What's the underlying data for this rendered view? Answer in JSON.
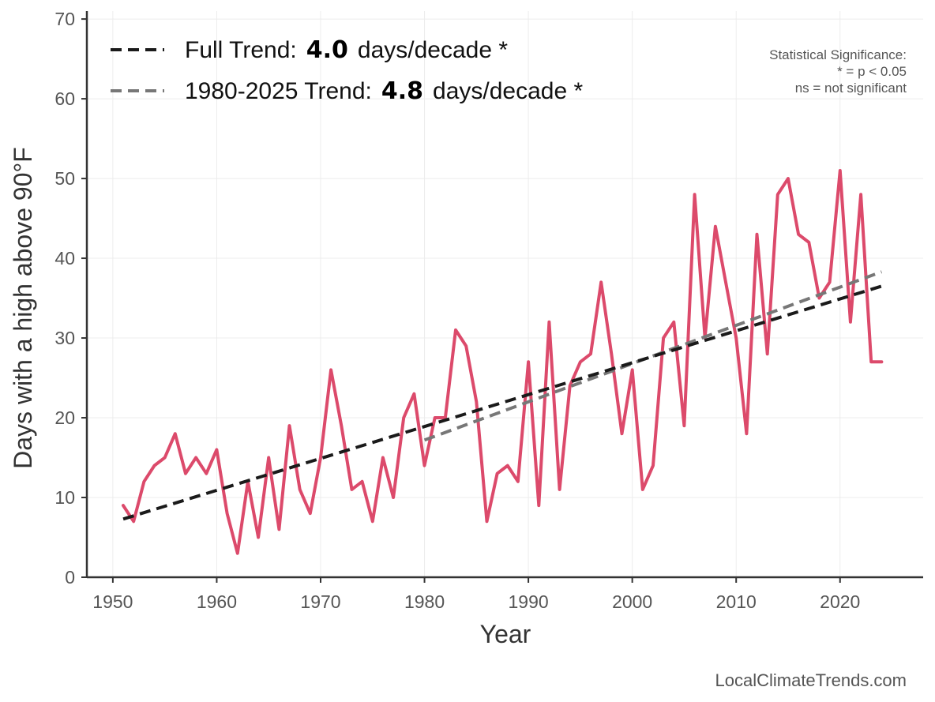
{
  "chart_data": {
    "type": "line",
    "title": "",
    "xlabel": "Year",
    "ylabel": "Days with a high above 90°F",
    "xlim": [
      1947.5,
      2028
    ],
    "ylim": [
      0,
      71
    ],
    "x_ticks": [
      1950,
      1960,
      1970,
      1980,
      1990,
      2000,
      2010,
      2020
    ],
    "y_ticks": [
      0,
      10,
      20,
      30,
      40,
      50,
      60,
      70
    ],
    "grid": true,
    "legend_position": "top-left",
    "series": [
      {
        "kind": "data",
        "color": "#dc4a6b",
        "x": [
          1951,
          1952,
          1953,
          1954,
          1955,
          1956,
          1957,
          1958,
          1959,
          1960,
          1961,
          1962,
          1963,
          1964,
          1965,
          1966,
          1967,
          1968,
          1969,
          1970,
          1971,
          1972,
          1973,
          1974,
          1975,
          1976,
          1977,
          1978,
          1979,
          1980,
          1981,
          1982,
          1983,
          1984,
          1985,
          1986,
          1987,
          1988,
          1989,
          1990,
          1991,
          1992,
          1993,
          1994,
          1995,
          1996,
          1997,
          1998,
          1999,
          2000,
          2001,
          2002,
          2003,
          2004,
          2005,
          2006,
          2007,
          2008,
          2009,
          2010,
          2011,
          2012,
          2013,
          2014,
          2015,
          2016,
          2017,
          2018,
          2019,
          2020,
          2021,
          2022,
          2023,
          2024
        ],
        "values": [
          9,
          7,
          12,
          14,
          15,
          18,
          13,
          15,
          13,
          16,
          8,
          3,
          12,
          5,
          15,
          6,
          19,
          11,
          8,
          15,
          26,
          19,
          11,
          12,
          7,
          15,
          10,
          20,
          23,
          14,
          20,
          20,
          31,
          29,
          22,
          7,
          13,
          14,
          12,
          27,
          9,
          32,
          11,
          24,
          27,
          28,
          37,
          28,
          18,
          26,
          11,
          14,
          30,
          32,
          19,
          48,
          30,
          44,
          37,
          30,
          18,
          43,
          28,
          48,
          50,
          43,
          42,
          35,
          37,
          51,
          32,
          48,
          27,
          27
        ]
      },
      {
        "kind": "trend",
        "name": "Full Trend:",
        "slope_value": "4.0",
        "unit": "days/decade *",
        "color": "#1a1a1a",
        "x": [
          1951,
          2024
        ],
        "values": [
          7.3,
          36.5
        ]
      },
      {
        "kind": "trend",
        "name": "1980-2025 Trend:",
        "slope_value": "4.8",
        "unit": "days/decade *",
        "color": "#777777",
        "x": [
          1980,
          2024
        ],
        "values": [
          17.2,
          38.3
        ]
      }
    ],
    "annotations": {
      "significance_lines": [
        "Statistical Significance:",
        "* = p < 0.05",
        "ns = not significant"
      ],
      "source": "LocalClimateTrends.com"
    }
  }
}
